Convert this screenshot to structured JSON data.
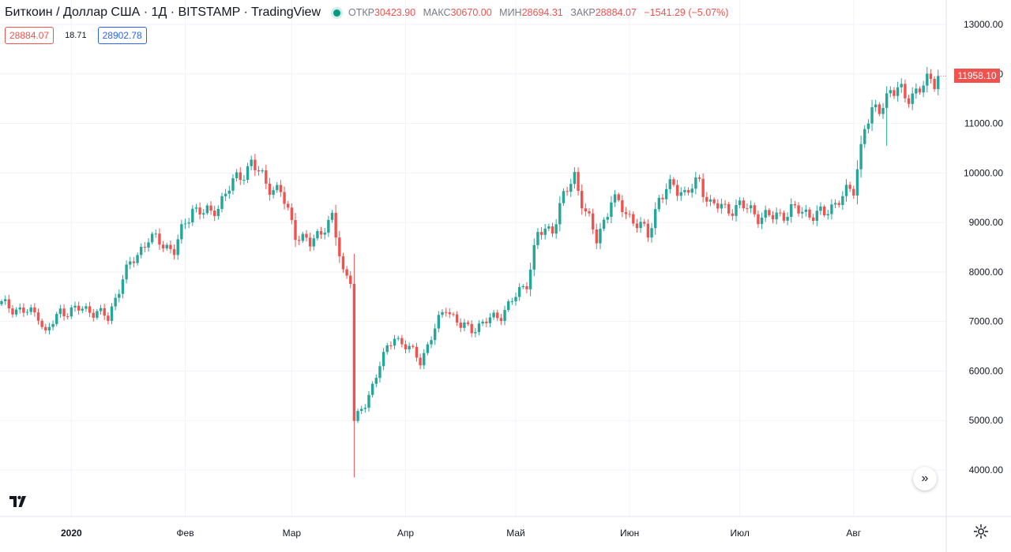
{
  "header": {
    "title": "Биткоин / Доллар США · 1Д · BITSTAMP · TradingView",
    "open_label": "ОТКР",
    "open": "30423.90",
    "high_label": "МАКС",
    "high": "30670.00",
    "low_label": "МИН",
    "low": "28694.31",
    "close_label": "ЗАКР",
    "close": "28884.07",
    "change": "−1541.29 (−5.07%)"
  },
  "order": {
    "sell": "28884.07",
    "spread": "18.71",
    "buy": "28902.78"
  },
  "last_price": {
    "label": "11958.10",
    "value": 11958.1
  },
  "icons": {
    "logo": "tradingview-logo-icon",
    "scroll": "scroll-to-realtime-icon",
    "settings": "gear-icon"
  },
  "colors": {
    "up": "#26a69a",
    "down": "#ef5350",
    "grid": "#f0f3fa"
  },
  "chart_data": {
    "type": "candlestick",
    "grid": true,
    "y_axis": {
      "side": "right",
      "range": [
        3500,
        13300
      ],
      "ticks": [
        "13000.00",
        "12000.00",
        "11000.00",
        "10000.00",
        "9000.00",
        "8000.00",
        "7000.00",
        "6000.00",
        "5000.00",
        "4000.00"
      ],
      "tick_values": [
        13000,
        12000,
        11000,
        10000,
        9000,
        8000,
        7000,
        6000,
        5000,
        4000
      ]
    },
    "x_axis": {
      "labels": [
        {
          "text": "2020",
          "bold": true,
          "index": 19
        },
        {
          "text": "Фев",
          "index": 50
        },
        {
          "text": "Мар",
          "index": 79
        },
        {
          "text": "Апр",
          "index": 110
        },
        {
          "text": "Май",
          "index": 140
        },
        {
          "text": "Июн",
          "index": 171
        },
        {
          "text": "Июл",
          "index": 201
        },
        {
          "text": "Авг",
          "index": 232
        }
      ]
    },
    "candles": []
  }
}
